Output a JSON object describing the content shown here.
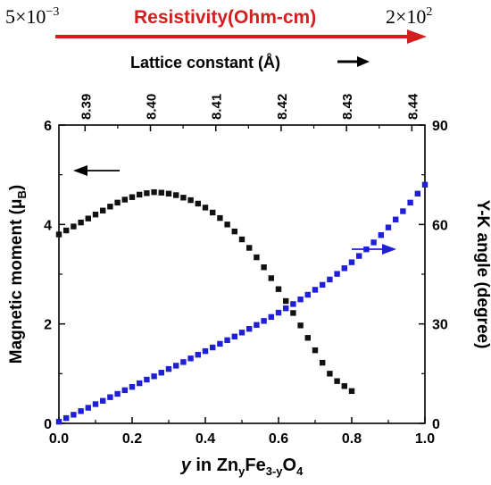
{
  "header": {
    "resistivity_min": "5×10",
    "resistivity_min_exp": "−3",
    "resistivity_label": "Resistivity(Ohm-cm)",
    "resistivity_max": "2×10",
    "resistivity_max_exp": "2",
    "lattice_label": "Lattice constant (Å)"
  },
  "colors": {
    "black_series": "#111111",
    "blue_series": "#1f1fd6",
    "resistivity_red": "#d2201e"
  },
  "chart_data": {
    "type": "scatter",
    "xlabel_parts": [
      "y",
      " in Zn",
      "y",
      "Fe",
      "3-y",
      "O",
      "4"
    ],
    "ylabel_left": "Magnetic moment (μB)",
    "ylabel_right": "Y-K angle (degree)",
    "xlim": [
      0.0,
      1.0
    ],
    "ylim_left": [
      0,
      6
    ],
    "ylim_right": [
      0,
      90
    ],
    "top_axis_lim": [
      8.386,
      8.442
    ],
    "x_ticks": [
      "0.0",
      "0.2",
      "0.4",
      "0.6",
      "0.8",
      "1.0"
    ],
    "y_left_ticks": [
      "0",
      "2",
      "4",
      "6"
    ],
    "y_right_ticks": [
      "0",
      "30",
      "60",
      "90"
    ],
    "top_ticks": [
      "8.39",
      "8.40",
      "8.41",
      "8.42",
      "8.43",
      "8.44"
    ],
    "series": [
      {
        "axis": "left",
        "x": [
          0.0,
          0.02,
          0.04,
          0.06,
          0.08,
          0.1,
          0.12,
          0.14,
          0.16,
          0.18,
          0.2,
          0.22,
          0.24,
          0.26,
          0.28,
          0.3,
          0.32,
          0.34,
          0.36,
          0.38,
          0.4,
          0.42,
          0.44,
          0.46,
          0.48,
          0.5,
          0.52,
          0.54,
          0.56,
          0.58,
          0.6,
          0.62,
          0.64,
          0.66,
          0.68,
          0.7,
          0.72,
          0.74,
          0.76,
          0.78,
          0.8
        ],
        "y": [
          3.8,
          3.88,
          3.96,
          4.04,
          4.12,
          4.2,
          4.28,
          4.36,
          4.44,
          4.5,
          4.55,
          4.6,
          4.63,
          4.65,
          4.64,
          4.62,
          4.59,
          4.54,
          4.49,
          4.42,
          4.34,
          4.24,
          4.13,
          4.0,
          3.86,
          3.7,
          3.53,
          3.34,
          3.14,
          2.92,
          2.7,
          2.46,
          2.22,
          1.97,
          1.72,
          1.47,
          1.22,
          1.0,
          0.85,
          0.75,
          0.65
        ]
      },
      {
        "axis": "right",
        "x": [
          0.0,
          0.02,
          0.04,
          0.06,
          0.08,
          0.1,
          0.12,
          0.14,
          0.16,
          0.18,
          0.2,
          0.22,
          0.24,
          0.26,
          0.28,
          0.3,
          0.32,
          0.34,
          0.36,
          0.38,
          0.4,
          0.42,
          0.44,
          0.46,
          0.48,
          0.5,
          0.52,
          0.54,
          0.56,
          0.58,
          0.6,
          0.62,
          0.64,
          0.66,
          0.68,
          0.7,
          0.72,
          0.74,
          0.76,
          0.78,
          0.8,
          0.82,
          0.84,
          0.86,
          0.88,
          0.9,
          0.92,
          0.94,
          0.96,
          0.98,
          1.0
        ],
        "y": [
          0.5,
          1.6,
          2.6,
          3.7,
          4.7,
          5.8,
          6.8,
          7.9,
          8.9,
          10.0,
          11.0,
          12.1,
          13.2,
          14.2,
          15.3,
          16.4,
          17.4,
          18.5,
          19.6,
          20.7,
          21.8,
          22.9,
          24.0,
          25.1,
          26.2,
          27.4,
          28.5,
          29.7,
          30.9,
          32.1,
          33.4,
          34.7,
          36.0,
          37.4,
          38.8,
          40.3,
          41.8,
          43.4,
          45.1,
          46.8,
          48.6,
          50.5,
          52.5,
          54.6,
          56.8,
          59.1,
          61.5,
          64.0,
          66.6,
          69.3,
          72.0
        ]
      }
    ]
  }
}
